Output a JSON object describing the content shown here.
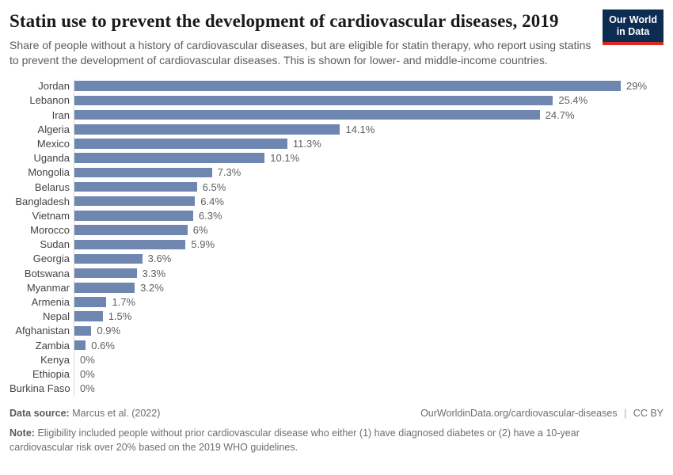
{
  "header": {
    "title": "Statin use to prevent the development of cardiovascular diseases, 2019",
    "subtitle": "Share of people without a history of cardiovascular diseases, but are eligible for statin therapy, who report using statins to prevent the development of cardiovascular diseases. This is shown for lower- and middle-income countries.",
    "logo": {
      "line1": "Our World",
      "line2": "in Data",
      "bg_color": "#0d2c51",
      "accent_color": "#d92921"
    }
  },
  "chart_data": {
    "type": "bar",
    "orientation": "horizontal",
    "title": "Statin use to prevent the development of cardiovascular diseases, 2019",
    "categories": [
      "Jordan",
      "Lebanon",
      "Iran",
      "Algeria",
      "Mexico",
      "Uganda",
      "Mongolia",
      "Belarus",
      "Bangladesh",
      "Vietnam",
      "Morocco",
      "Sudan",
      "Georgia",
      "Botswana",
      "Myanmar",
      "Armenia",
      "Nepal",
      "Afghanistan",
      "Zambia",
      "Kenya",
      "Ethiopia",
      "Burkina Faso"
    ],
    "values": [
      29,
      25.4,
      24.7,
      14.1,
      11.3,
      10.1,
      7.3,
      6.5,
      6.4,
      6.3,
      6,
      5.9,
      3.6,
      3.3,
      3.2,
      1.7,
      1.5,
      0.9,
      0.6,
      0,
      0,
      0
    ],
    "labels": [
      "29%",
      "25.4%",
      "24.7%",
      "14.1%",
      "11.3%",
      "10.1%",
      "7.3%",
      "6.5%",
      "6.4%",
      "6.3%",
      "6%",
      "5.9%",
      "3.6%",
      "3.3%",
      "3.2%",
      "1.7%",
      "1.5%",
      "0.9%",
      "0.6%",
      "0%",
      "0%",
      "0%"
    ],
    "xlabel": "",
    "ylabel": "",
    "xlim": [
      0,
      29
    ],
    "grid": false,
    "value_labels": true,
    "legend": "none",
    "bar_color": "#6e86b0",
    "axis_line_color": "#d9d9d9",
    "unit": "%"
  },
  "footer": {
    "data_source_label": "Data source:",
    "data_source_value": "Marcus et al. (2022)",
    "link": "OurWorldinData.org/cardiovascular-diseases",
    "separator": "|",
    "license": "CC BY",
    "note_label": "Note:",
    "note_text": "Eligibility included people without prior cardiovascular disease who either (1) have diagnosed diabetes or (2) have a 10-year cardiovascular risk over 20% based on the 2019 WHO guidelines."
  }
}
